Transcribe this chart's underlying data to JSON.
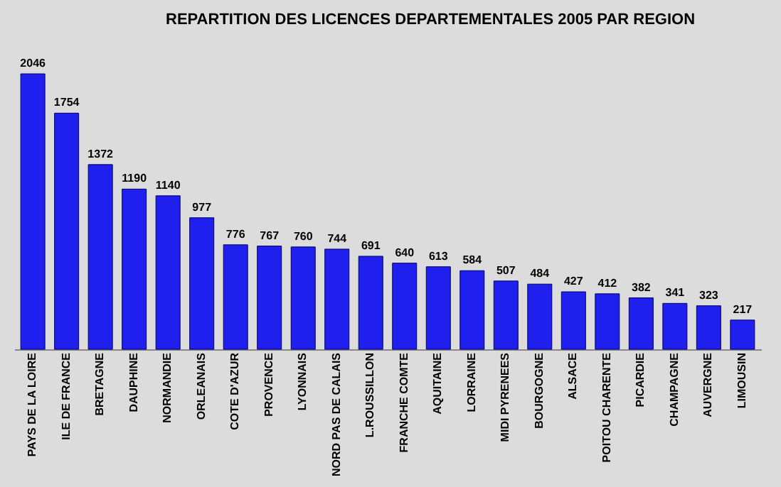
{
  "chart_data": {
    "type": "bar",
    "title": "REPARTITION DES LICENCES DEPARTEMENTALES 2005 PAR REGION",
    "categories": [
      "PAYS DE LA LOIRE",
      "ILE DE FRANCE",
      "BRETAGNE",
      "DAUPHINE",
      "NORMANDIE",
      "ORLEANAIS",
      "COTE D'AZUR",
      "PROVENCE",
      "LYONNAIS",
      "NORD PAS DE CALAIS",
      "L.ROUSSILLON",
      "FRANCHE COMTE",
      "AQUITAINE",
      "LORRAINE",
      "MIDI PYRENEES",
      "BOURGOGNE",
      "ALSACE",
      "POITOU CHARENTE",
      "PICARDIE",
      "CHAMPAGNE",
      "AUVERGNE",
      "LIMOUSIN"
    ],
    "values": [
      2046,
      1754,
      1372,
      1190,
      1140,
      977,
      776,
      767,
      760,
      744,
      691,
      640,
      613,
      584,
      507,
      484,
      427,
      412,
      382,
      341,
      323,
      217
    ],
    "color": "#1f1fee",
    "data_labels": true,
    "tick_labels": "x"
  }
}
